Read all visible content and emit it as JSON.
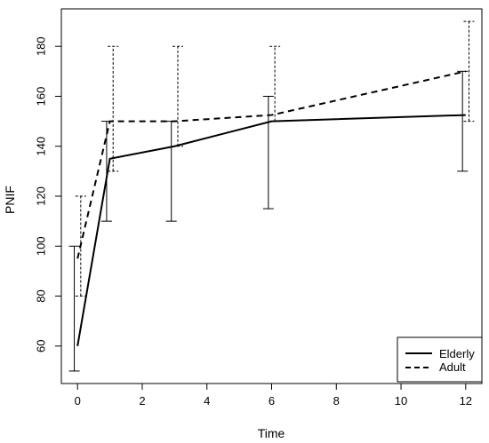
{
  "chart_data": {
    "type": "line",
    "title": "",
    "xlabel": "Time",
    "ylabel": "PNIF",
    "xlim": [
      -0.5,
      12.5
    ],
    "ylim": [
      45,
      195
    ],
    "xticks": [
      0,
      2,
      4,
      6,
      8,
      10,
      12
    ],
    "yticks": [
      60,
      80,
      100,
      120,
      140,
      160,
      180
    ],
    "grid": false,
    "legend_position": "bottom-right",
    "series": [
      {
        "name": "Elderly",
        "line_style": "solid",
        "x": [
          0,
          1,
          3,
          6,
          12
        ],
        "y": [
          60,
          135,
          140,
          150,
          152.5
        ],
        "error_low": [
          50,
          110,
          110,
          115,
          130
        ],
        "error_high": [
          100,
          150,
          150,
          160,
          170
        ]
      },
      {
        "name": "Adult",
        "line_style": "dashed",
        "x": [
          0,
          1,
          3,
          6,
          12
        ],
        "y": [
          95,
          150,
          150,
          152.5,
          170
        ],
        "error_low": [
          80,
          130,
          140,
          150,
          150
        ],
        "error_high": [
          120,
          180,
          180,
          180,
          190
        ]
      }
    ]
  }
}
